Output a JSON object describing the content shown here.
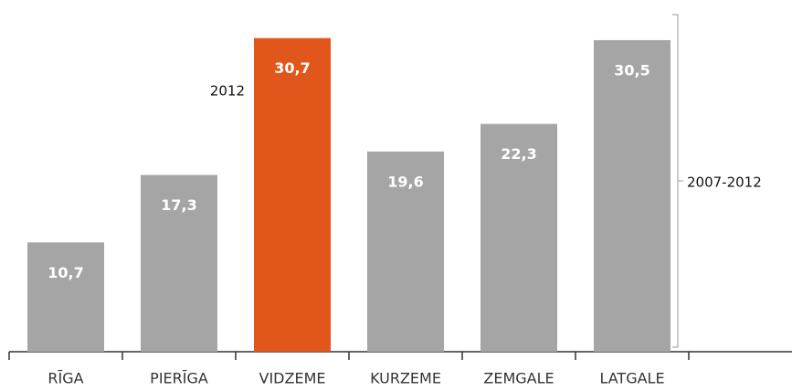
{
  "chart_data": {
    "type": "bar",
    "categories": [
      "RĪGA",
      "PIERĪGA",
      "VIDZEME",
      "KURZEME",
      "ZEMGALE",
      "LATGALE"
    ],
    "values": [
      10.7,
      17.3,
      30.7,
      19.6,
      22.3,
      30.5
    ],
    "value_labels": [
      "10,7",
      "17,3",
      "30,7",
      "19,6",
      "22,3",
      "30,5"
    ],
    "colors": [
      "#a5a5a5",
      "#a5a5a5",
      "#e0561b",
      "#a5a5a5",
      "#a5a5a5",
      "#a5a5a5"
    ],
    "ylim": [
      0,
      33
    ],
    "annotations": [
      "2012",
      "2007-2012"
    ]
  }
}
